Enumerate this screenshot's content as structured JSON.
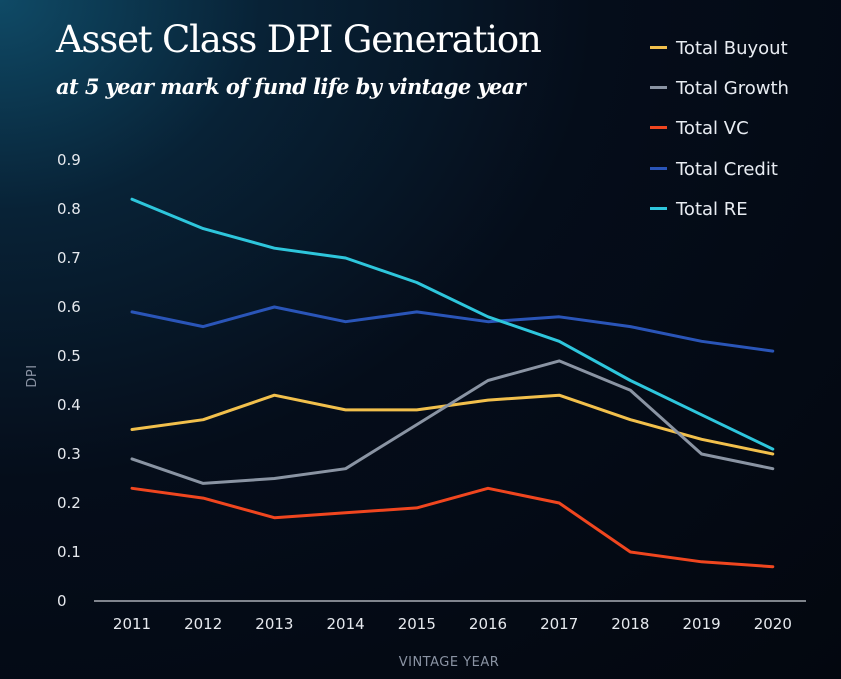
{
  "chart_data": {
    "type": "line",
    "title": "Asset Class DPI Generation",
    "subtitle": "at 5 year mark of fund life by vintage year",
    "xlabel": "VINTAGE YEAR",
    "ylabel": "DPI",
    "ylim": [
      0,
      0.9
    ],
    "yticks": [
      "0",
      "0.1",
      "0.2",
      "0.3",
      "0.4",
      "0.5",
      "0.6",
      "0.7",
      "0.8",
      "0.9"
    ],
    "categories": [
      "2011",
      "2012",
      "2013",
      "2014",
      "2015",
      "2016",
      "2017",
      "2018",
      "2019",
      "2020"
    ],
    "grid": false,
    "legend_position": "top-right",
    "series": [
      {
        "name": "Total Buyout",
        "color": "#f2c04c",
        "values": [
          0.35,
          0.37,
          0.42,
          0.39,
          0.39,
          0.41,
          0.42,
          0.37,
          0.33,
          0.3
        ]
      },
      {
        "name": "Total Growth",
        "color": "#8a94a3",
        "values": [
          0.29,
          0.24,
          0.25,
          0.27,
          0.36,
          0.45,
          0.49,
          0.43,
          0.3,
          0.27
        ]
      },
      {
        "name": "Total VC",
        "color": "#f0461f",
        "values": [
          0.23,
          0.21,
          0.17,
          0.18,
          0.19,
          0.23,
          0.2,
          0.1,
          0.08,
          0.07
        ]
      },
      {
        "name": "Total Credit",
        "color": "#2a55b8",
        "values": [
          0.59,
          0.56,
          0.6,
          0.57,
          0.59,
          0.57,
          0.58,
          0.56,
          0.53,
          0.51
        ]
      },
      {
        "name": "Total RE",
        "color": "#2ec6dc",
        "values": [
          0.82,
          0.76,
          0.72,
          0.7,
          0.65,
          0.58,
          0.53,
          0.45,
          0.38,
          0.31
        ]
      }
    ]
  }
}
